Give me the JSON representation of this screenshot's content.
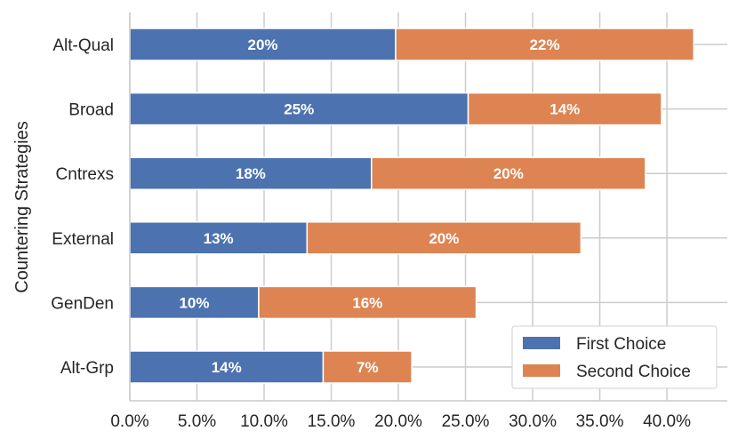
{
  "chart_data": {
    "type": "bar",
    "orientation": "horizontal",
    "stacked": true,
    "ylabel": "Countering Strategies",
    "xlabel": "",
    "categories": [
      "Alt-Qual",
      "Broad",
      "Cntrexs",
      "External",
      "GenDen",
      "Alt-Grp"
    ],
    "series": [
      {
        "name": "First Choice",
        "color": "#4c72b0",
        "values": [
          19.8,
          25.2,
          18.0,
          13.2,
          9.6,
          14.4
        ],
        "labels": [
          "20%",
          "25%",
          "18%",
          "13%",
          "10%",
          "14%"
        ]
      },
      {
        "name": "Second Choice",
        "color": "#dd8452",
        "values": [
          22.2,
          14.4,
          20.4,
          20.4,
          16.2,
          6.6
        ],
        "labels": [
          "22%",
          "14%",
          "20%",
          "20%",
          "16%",
          "7%"
        ]
      }
    ],
    "xlim": [
      0,
      44.5
    ],
    "xticks": [
      0,
      5,
      10,
      15,
      20,
      25,
      30,
      35,
      40
    ],
    "xtick_labels": [
      "0.0%",
      "5.0%",
      "10.0%",
      "15.0%",
      "20.0%",
      "25.0%",
      "30.0%",
      "35.0%",
      "40.0%"
    ],
    "grid": true,
    "legend_position": "bottom-right"
  }
}
